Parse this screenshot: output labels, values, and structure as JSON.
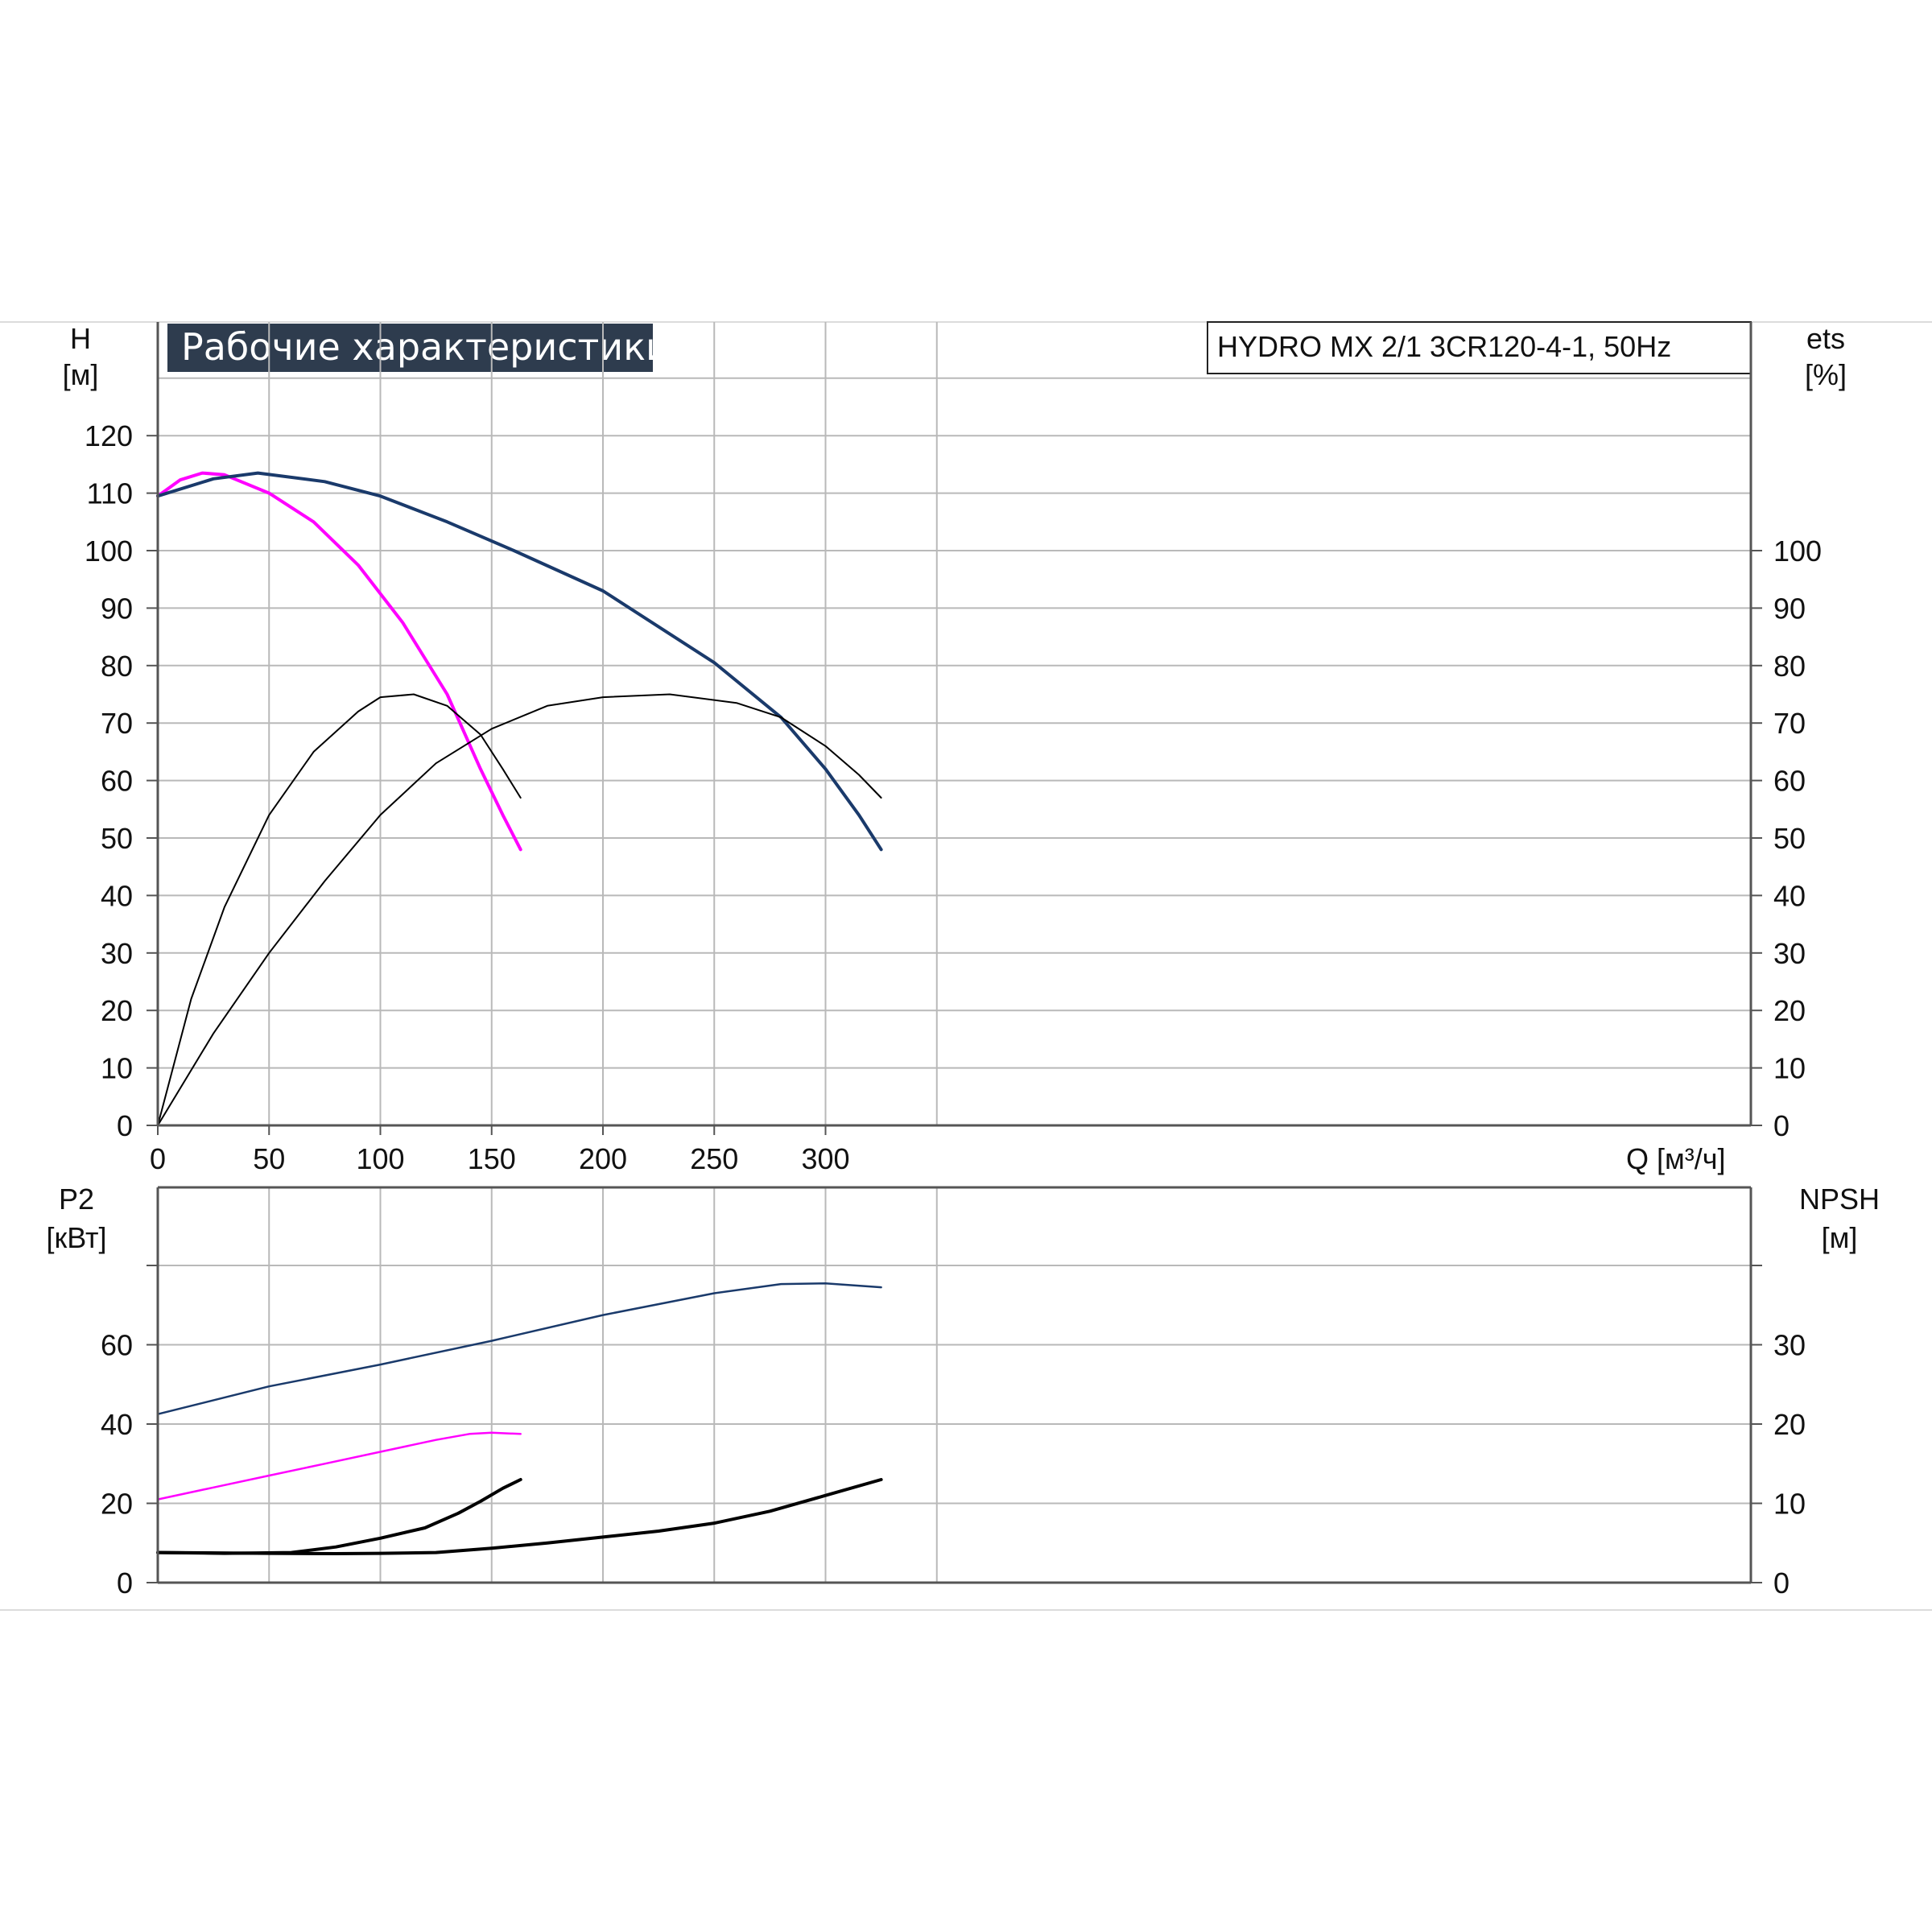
{
  "chart_data": [
    {
      "type": "line",
      "panel": "top",
      "title": "Рабочие характеристики",
      "subtitle": "HYDRO MX 2/1 3CR120-4-1, 50Hz",
      "ylabel": "H",
      "ylabel_unit": "[м]",
      "y2label": "ets",
      "y2label_unit": "[%]",
      "xlabel": "Q [м³/ч]",
      "xlim": [
        0,
        360
      ],
      "ylim": [
        0,
        120
      ],
      "grid": true,
      "x_ticks": [
        "0",
        "50",
        "100",
        "150",
        "200",
        "250",
        "300"
      ],
      "y_ticks": [
        "0",
        "10",
        "20",
        "30",
        "40",
        "50",
        "60",
        "70",
        "80",
        "90",
        "100",
        "110",
        "120"
      ],
      "y2_ticks": [
        "0",
        "10",
        "20",
        "30",
        "40",
        "50",
        "60",
        "70",
        "80",
        "90",
        "100"
      ],
      "series": [
        {
          "color": "#FF00FF",
          "width": 4,
          "points": [
            [
              0,
              109.5
            ],
            [
              10,
              112.3
            ],
            [
              20,
              113.5
            ],
            [
              30,
              113.2
            ],
            [
              50,
              110
            ],
            [
              70,
              105
            ],
            [
              90,
              97.5
            ],
            [
              110,
              87.5
            ],
            [
              130,
              75
            ],
            [
              145,
              62
            ],
            [
              155,
              54
            ],
            [
              163,
              48
            ]
          ]
        },
        {
          "color": "#1A3A6B",
          "width": 4,
          "points": [
            [
              0,
              109.5
            ],
            [
              25,
              112.5
            ],
            [
              45,
              113.5
            ],
            [
              75,
              112
            ],
            [
              100,
              109.5
            ],
            [
              130,
              105
            ],
            [
              160,
              100
            ],
            [
              200,
              93
            ],
            [
              250,
              80.5
            ],
            [
              280,
              71
            ],
            [
              300,
              62
            ],
            [
              315,
              54
            ],
            [
              325,
              48
            ]
          ]
        },
        {
          "color": "#000000",
          "width": 2,
          "points": [
            [
              0,
              0
            ],
            [
              15,
              22
            ],
            [
              30,
              38
            ],
            [
              50,
              54
            ],
            [
              70,
              65
            ],
            [
              90,
              72
            ],
            [
              100,
              74.5
            ],
            [
              115,
              75
            ],
            [
              130,
              73
            ],
            [
              145,
              68
            ],
            [
              155,
              62
            ],
            [
              163,
              57
            ]
          ]
        },
        {
          "color": "#000000",
          "width": 2,
          "points": [
            [
              0,
              0
            ],
            [
              25,
              16
            ],
            [
              50,
              30
            ],
            [
              75,
              42.5
            ],
            [
              100,
              54
            ],
            [
              125,
              63
            ],
            [
              150,
              69
            ],
            [
              175,
              73
            ],
            [
              200,
              74.5
            ],
            [
              230,
              75
            ],
            [
              260,
              73.5
            ],
            [
              280,
              71
            ],
            [
              300,
              66
            ],
            [
              315,
              61
            ],
            [
              325,
              57
            ]
          ]
        }
      ]
    },
    {
      "type": "line",
      "panel": "bottom",
      "ylabel": "P2",
      "ylabel_unit": "[кВт]",
      "y2label": "NPSH",
      "y2label_unit": "[м]",
      "xlim": [
        0,
        360
      ],
      "ylim": [
        0,
        80
      ],
      "grid": true,
      "y_ticks": [
        "0",
        "20",
        "40",
        "60"
      ],
      "y2_ticks": [
        "0",
        "10",
        "20",
        "30"
      ],
      "series": [
        {
          "color": "#1A3A6B",
          "width": 2.5,
          "points": [
            [
              0,
              42.5
            ],
            [
              50,
              49.5
            ],
            [
              100,
              55
            ],
            [
              150,
              61
            ],
            [
              200,
              67.5
            ],
            [
              250,
              73
            ],
            [
              280,
              75.3
            ],
            [
              300,
              75.5
            ],
            [
              325,
              74.5
            ]
          ]
        },
        {
          "color": "#FF00FF",
          "width": 2.5,
          "points": [
            [
              0,
              21
            ],
            [
              25,
              24
            ],
            [
              50,
              27
            ],
            [
              75,
              30
            ],
            [
              100,
              33
            ],
            [
              125,
              36
            ],
            [
              140,
              37.5
            ],
            [
              150,
              37.8
            ],
            [
              163,
              37.5
            ]
          ]
        },
        {
          "color": "#000000",
          "width": 4,
          "points": [
            [
              0,
              7.6
            ],
            [
              30,
              7.4
            ],
            [
              60,
              7.6
            ],
            [
              80,
              9
            ],
            [
              100,
              11.2
            ],
            [
              120,
              13.8
            ],
            [
              135,
              17.5
            ],
            [
              145,
              20.5
            ],
            [
              155,
              23.8
            ],
            [
              163,
              26
            ]
          ]
        },
        {
          "color": "#000000",
          "width": 4,
          "points": [
            [
              0,
              7.6
            ],
            [
              50,
              7.4
            ],
            [
              80,
              7.3
            ],
            [
              100,
              7.4
            ],
            [
              125,
              7.6
            ],
            [
              150,
              8.7
            ],
            [
              175,
              10
            ],
            [
              200,
              11.5
            ],
            [
              225,
              13
            ],
            [
              250,
              15
            ],
            [
              275,
              18
            ],
            [
              300,
              22
            ],
            [
              325,
              26
            ]
          ]
        }
      ]
    }
  ]
}
